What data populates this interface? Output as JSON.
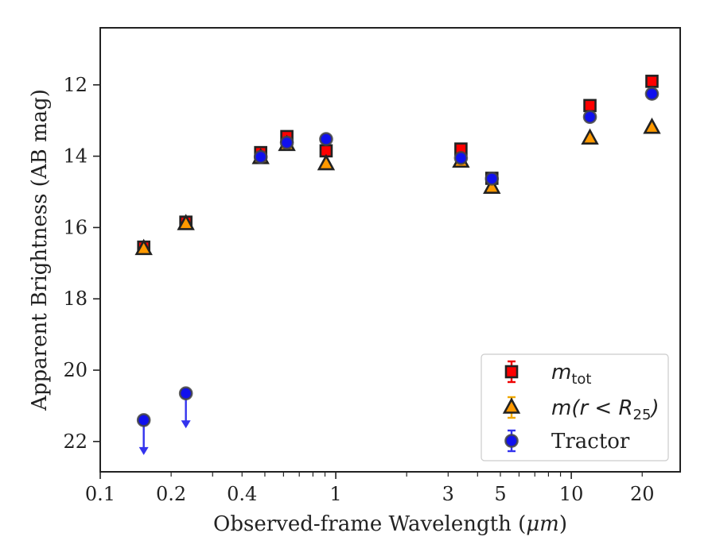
{
  "chart_data": {
    "type": "scatter",
    "xlabel_prefix": "Observed-frame Wavelength (",
    "xlabel_unit": "μm",
    "xlabel_suffix": ")",
    "ylabel": "Apparent Brightness (AB mag)",
    "xscale": "log",
    "xlim": [
      0.1,
      29
    ],
    "ylim": [
      22.85,
      10.4
    ],
    "y_inverted": true,
    "x_ticks": [
      {
        "value": 0.1,
        "label": "0.1"
      },
      {
        "value": 0.2,
        "label": "0.2"
      },
      {
        "value": 0.4,
        "label": "0.4"
      },
      {
        "value": 1,
        "label": "1"
      },
      {
        "value": 3,
        "label": "3"
      },
      {
        "value": 5,
        "label": "5"
      },
      {
        "value": 10,
        "label": "10"
      },
      {
        "value": 20,
        "label": "20"
      }
    ],
    "y_ticks": [
      {
        "value": 12,
        "label": "12"
      },
      {
        "value": 14,
        "label": "14"
      },
      {
        "value": 16,
        "label": "16"
      },
      {
        "value": 18,
        "label": "18"
      },
      {
        "value": 20,
        "label": "20"
      },
      {
        "value": 22,
        "label": "22"
      }
    ],
    "legend_position": "lower-right",
    "grid": false,
    "series": [
      {
        "key": "mtot",
        "legend_main": "m",
        "legend_sub": "tot",
        "legend_rest": "",
        "marker": "square",
        "color": "#ff0000",
        "edge": "#222222",
        "errcolor": "#ee0000",
        "x": [
          0.153,
          0.231,
          0.48,
          0.62,
          0.91,
          3.4,
          4.6,
          12.0,
          22.0
        ],
        "y": [
          16.55,
          15.85,
          13.9,
          13.45,
          13.85,
          13.8,
          14.62,
          12.58,
          11.9
        ]
      },
      {
        "key": "mr25",
        "legend_main": "m",
        "legend_sub": "25",
        "legend_rest": "(r < R",
        "marker": "triangle",
        "color": "#ff9900",
        "edge": "#222222",
        "errcolor": "#f0a800",
        "x": [
          0.153,
          0.231,
          0.48,
          0.62,
          0.91,
          3.4,
          4.6,
          12.0,
          22.0
        ],
        "y": [
          16.6,
          15.9,
          14.05,
          13.68,
          14.22,
          14.15,
          14.88,
          13.5,
          13.2
        ]
      },
      {
        "key": "tractor",
        "legend_main": "Tractor",
        "marker": "circle",
        "color": "#1010ee",
        "edge": "#444444",
        "errcolor": "#3333ee",
        "x": [
          0.153,
          0.231,
          0.48,
          0.62,
          0.91,
          3.4,
          4.6,
          12.0,
          22.0
        ],
        "y": [
          21.4,
          20.65,
          14.02,
          13.62,
          13.52,
          14.05,
          14.63,
          12.9,
          12.25
        ],
        "upper_limit": [
          true,
          true,
          false,
          false,
          false,
          false,
          false,
          false,
          false
        ]
      }
    ]
  }
}
